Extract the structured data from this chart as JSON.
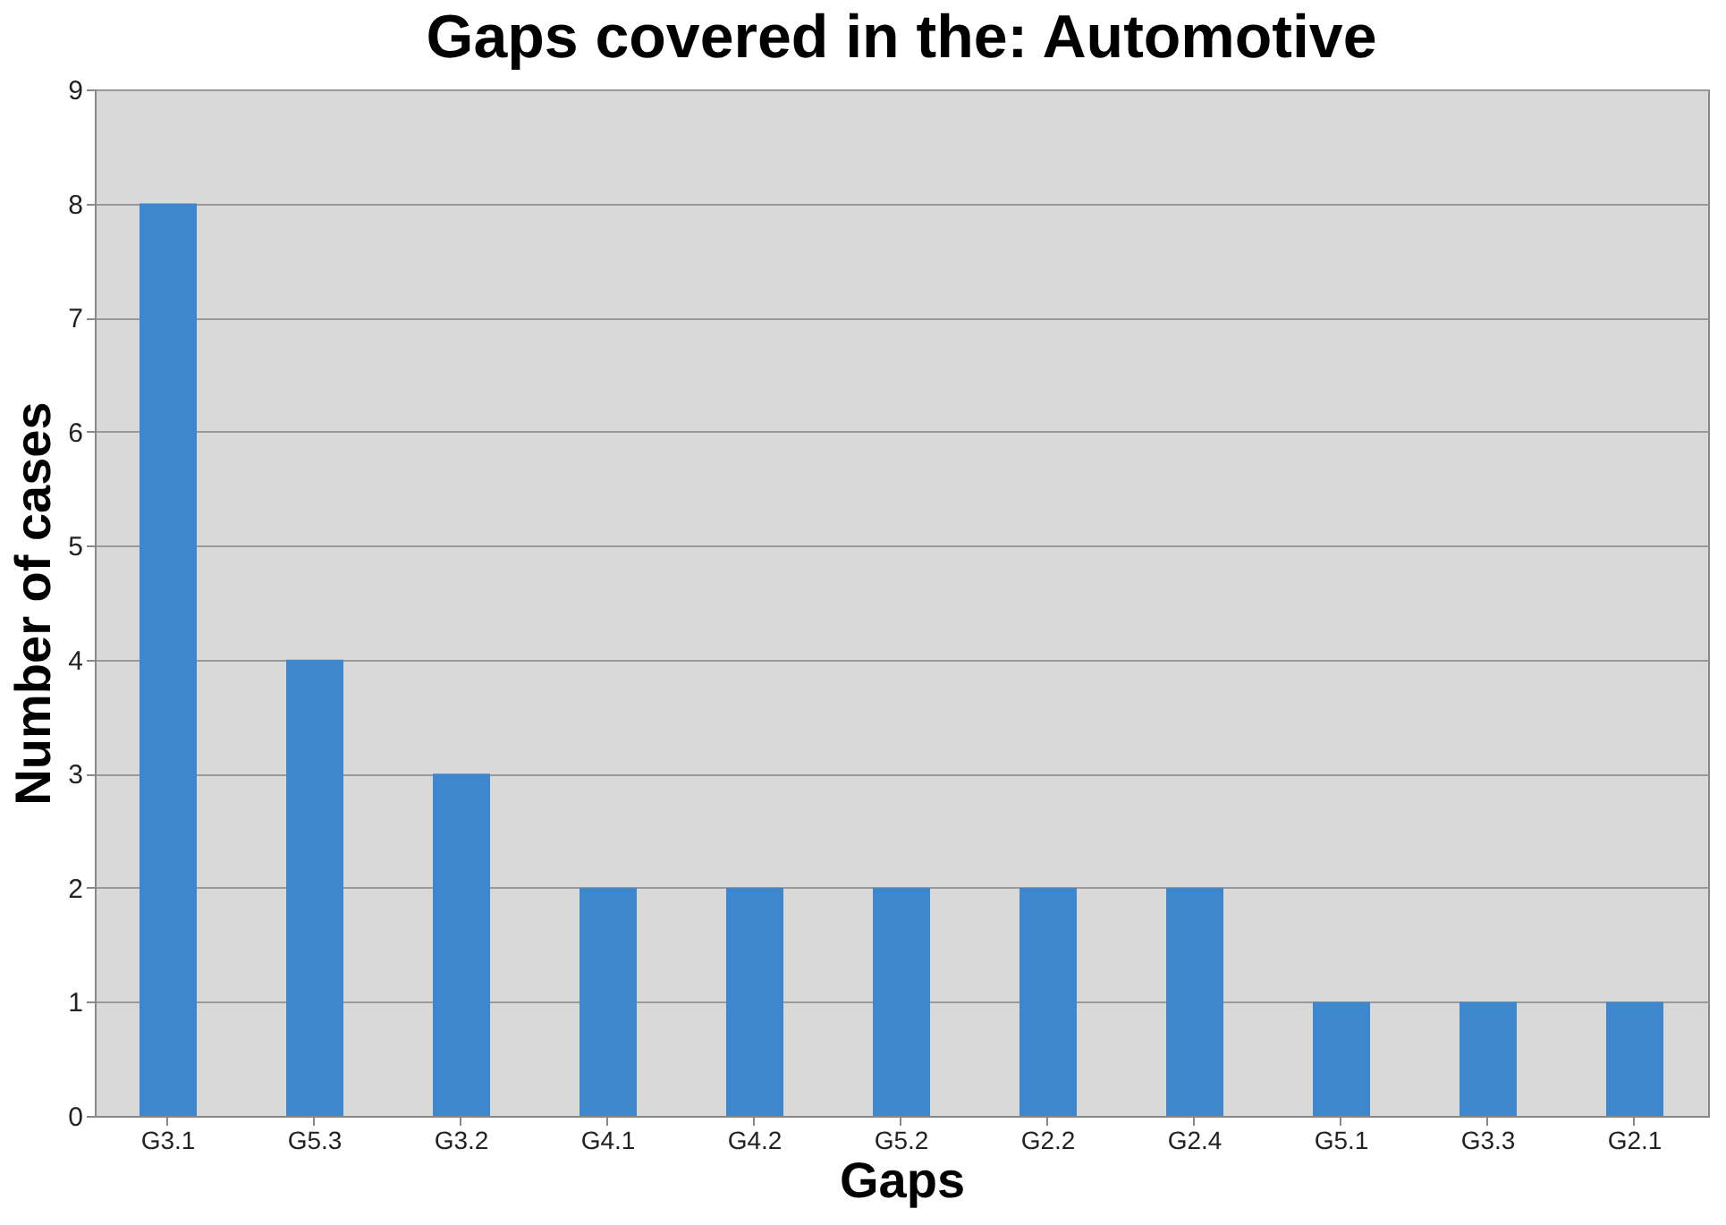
{
  "chart_data": {
    "type": "bar",
    "title": "Gaps covered in the: Automotive",
    "xlabel": "Gaps",
    "ylabel": "Number of cases",
    "categories": [
      "G3.1",
      "G5.3",
      "G3.2",
      "G4.1",
      "G4.2",
      "G5.2",
      "G2.2",
      "G2.4",
      "G5.1",
      "G3.3",
      "G2.1"
    ],
    "values": [
      8,
      4,
      3,
      2,
      2,
      2,
      2,
      2,
      1,
      1,
      1
    ],
    "color": "#3f87cc",
    "ylim": [
      0,
      9
    ],
    "yticks": [
      0,
      1,
      2,
      3,
      4,
      5,
      6,
      7,
      8,
      9
    ],
    "grid": "y"
  }
}
